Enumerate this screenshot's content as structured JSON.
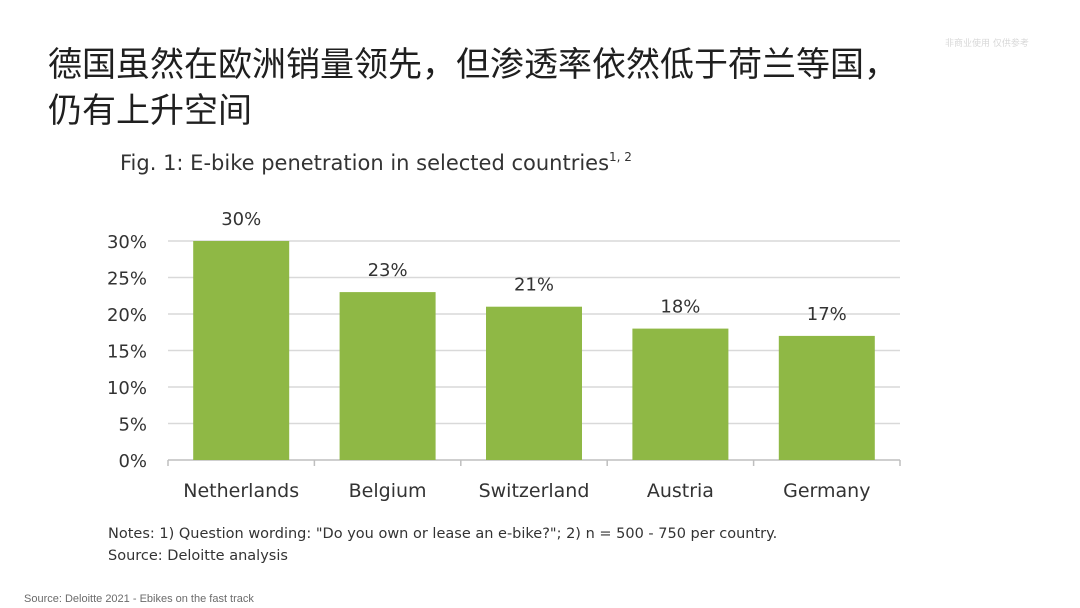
{
  "watermark": "非商业使用 仅供参考",
  "slide": {
    "title_line1": "德国虽然在欧洲销量领先，但渗透率依然低于荷兰等国，",
    "title_line2": "仍有上升空间"
  },
  "figure": {
    "title": "Fig. 1: E-bike penetration in selected countries",
    "title_sup": "1, 2",
    "notes": "Notes: 1) Question wording: \"Do you own or lease an e-bike?\"; 2) n = 500 - 750 per country.",
    "source": "Source: Deloitte analysis"
  },
  "footer": {
    "source": "Source: Deloitte 2021 - Ebikes on the fast track"
  },
  "chart_data": {
    "type": "bar",
    "title": "Fig. 1: E-bike penetration in selected countries",
    "categories": [
      "Netherlands",
      "Belgium",
      "Switzerland",
      "Austria",
      "Germany"
    ],
    "values": [
      30,
      23,
      21,
      18,
      17
    ],
    "data_labels": [
      "30%",
      "23%",
      "21%",
      "18%",
      "17%"
    ],
    "yticks": [
      0,
      5,
      10,
      15,
      20,
      25,
      30
    ],
    "ytick_labels": [
      "0%",
      "5%",
      "10%",
      "15%",
      "20%",
      "25%",
      "30%"
    ],
    "ylim": [
      0,
      30
    ],
    "grid": true,
    "bar_color": "#8fb845",
    "grid_color": "#d9d9d9",
    "axis_color": "#bfbfbf"
  }
}
